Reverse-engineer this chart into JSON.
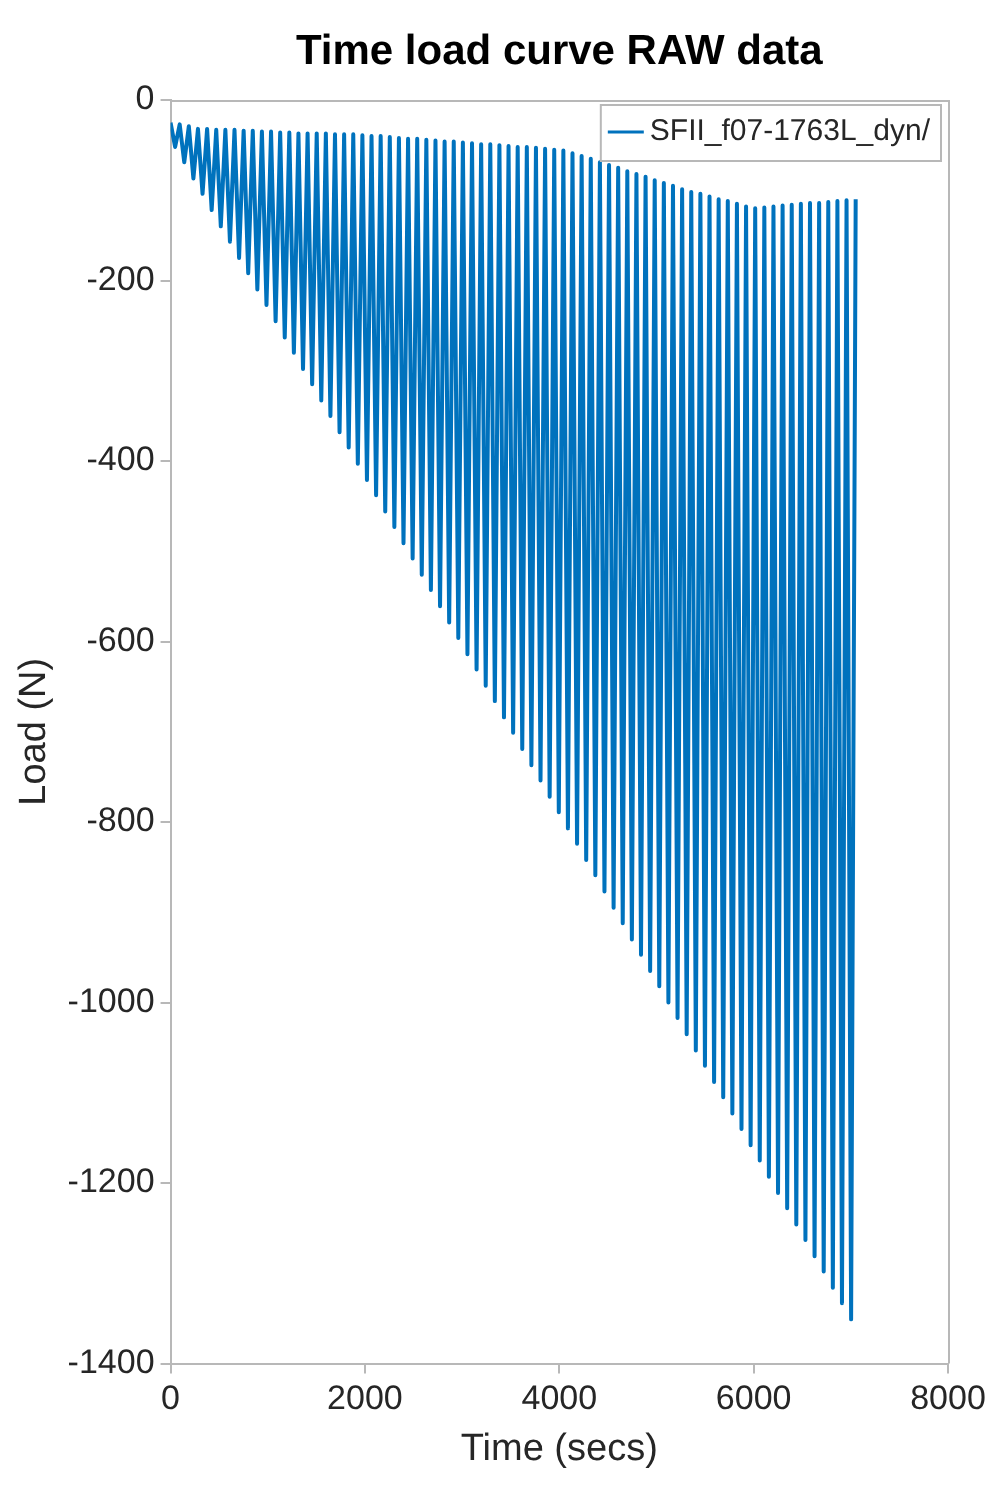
{
  "chart_data": {
    "type": "line",
    "title": "Time load curve RAW data",
    "xlabel": "Time (secs)",
    "ylabel": "Load (N)",
    "xlim": [
      0,
      8000
    ],
    "xticks": [
      0,
      2000,
      4000,
      6000,
      8000
    ],
    "ylim": [
      -1400,
      0
    ],
    "yticks": [
      -1400,
      -1200,
      -1000,
      -800,
      -600,
      -400,
      -200,
      0
    ],
    "grid": false,
    "legend": "top right",
    "marker": "none",
    "line_style": "solid",
    "x": [
      0,
      47,
      94,
      141,
      188,
      235,
      282,
      329,
      376,
      423,
      470,
      517,
      564,
      611,
      658,
      705,
      752,
      799,
      846,
      893,
      940,
      987,
      1034,
      1081,
      1128,
      1175,
      1222,
      1269,
      1316,
      1363,
      1410,
      1457,
      1504,
      1551,
      1598,
      1645,
      1692,
      1739,
      1786,
      1833,
      1880,
      1927,
      1974,
      2021,
      2068,
      2115,
      2162,
      2209,
      2256,
      2303,
      2350,
      2397,
      2444,
      2491,
      2538,
      2585,
      2632,
      2679,
      2726,
      2773,
      2820,
      2867,
      2914,
      2961,
      3008,
      3055,
      3102,
      3149,
      3196,
      3243,
      3290,
      3337,
      3384,
      3431,
      3478,
      3525,
      3572,
      3619,
      3666,
      3713,
      3760,
      3807,
      3854,
      3901,
      3948,
      3995,
      4042,
      4089,
      4136,
      4183,
      4230,
      4277,
      4324,
      4371,
      4418,
      4465,
      4512,
      4559,
      4606,
      4653,
      4700,
      4747,
      4794,
      4841,
      4888,
      4935,
      4982,
      5029,
      5076,
      5123,
      5170,
      5217,
      5264,
      5311,
      5358,
      5405,
      5452,
      5499,
      5546,
      5593,
      5640,
      5687,
      5734,
      5781,
      5828,
      5875,
      5922,
      5969,
      6016,
      6063,
      6110,
      6157,
      6204,
      6251,
      6298,
      6345,
      6392,
      6439,
      6486,
      6533,
      6580,
      6627,
      6674,
      6721,
      6768,
      6815,
      6862,
      6909,
      6956,
      7003,
      7050
    ],
    "series": [
      {
        "name": "SFII_f07-1763L_dyn/",
        "color": "#0072bd",
        "values": [
          -25,
          -52,
          -27,
          -69,
          -29,
          -87,
          -32,
          -104,
          -32,
          -122,
          -33,
          -140,
          -33,
          -157,
          -33,
          -175,
          -34,
          -192,
          -34,
          -210,
          -35,
          -227,
          -35,
          -245,
          -36,
          -263,
          -36,
          -280,
          -37,
          -298,
          -37,
          -315,
          -37,
          -333,
          -37,
          -350,
          -38,
          -368,
          -38,
          -385,
          -38,
          -403,
          -39,
          -421,
          -40,
          -438,
          -40,
          -456,
          -41,
          -473,
          -42,
          -491,
          -43,
          -508,
          -43,
          -526,
          -44,
          -543,
          -45,
          -561,
          -46,
          -579,
          -46,
          -596,
          -47,
          -614,
          -48,
          -631,
          -49,
          -649,
          -49,
          -666,
          -50,
          -684,
          -51,
          -701,
          -52,
          -719,
          -52,
          -737,
          -53,
          -754,
          -54,
          -772,
          -55,
          -789,
          -56,
          -807,
          -59,
          -824,
          -62,
          -842,
          -65,
          -859,
          -69,
          -877,
          -72,
          -895,
          -75,
          -912,
          -79,
          -930,
          -82,
          -947,
          -85,
          -965,
          -89,
          -982,
          -92,
          -1000,
          -95,
          -1017,
          -99,
          -1035,
          -102,
          -1053,
          -104,
          -1070,
          -107,
          -1088,
          -110,
          -1105,
          -112,
          -1123,
          -115,
          -1140,
          -118,
          -1158,
          -120,
          -1175,
          -119,
          -1193,
          -118,
          -1211,
          -117,
          -1228,
          -116,
          -1246,
          -115,
          -1263,
          -114,
          -1281,
          -114,
          -1298,
          -113,
          -1316,
          -112,
          -1333,
          -111,
          -1351,
          -110
        ]
      }
    ]
  }
}
